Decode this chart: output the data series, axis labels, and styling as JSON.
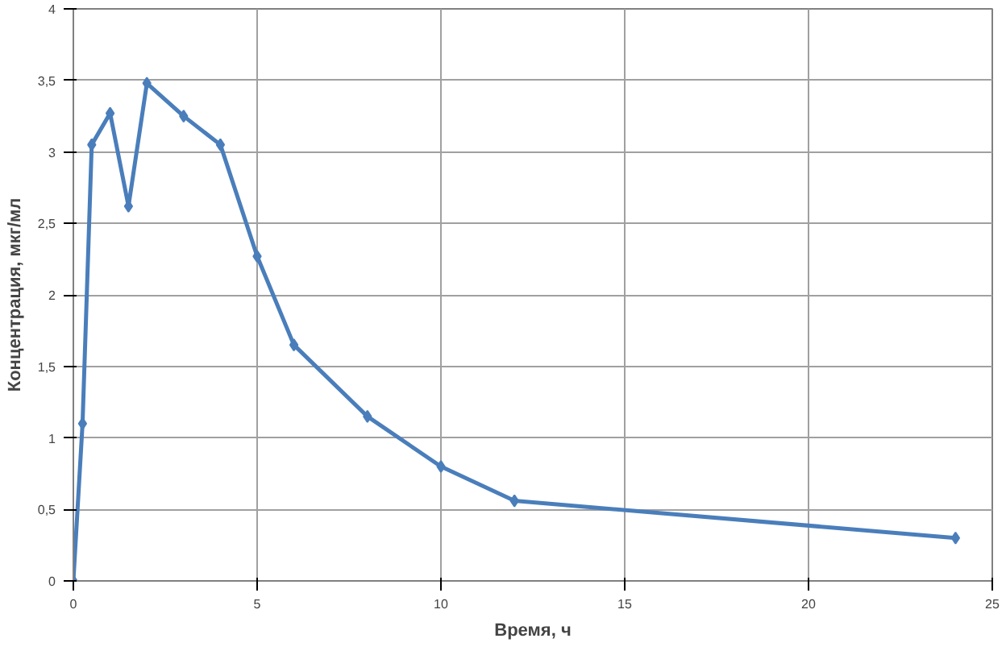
{
  "chart_data": {
    "type": "line",
    "xlabel": "Время, ч",
    "ylabel": "Концентрация, мкг/мл",
    "x": [
      0,
      0.25,
      0.5,
      1,
      1.5,
      2,
      3,
      4,
      5,
      6,
      8,
      10,
      12,
      24
    ],
    "series": [
      {
        "color": "#4a7ebb",
        "values": [
          0,
          1.1,
          3.05,
          3.27,
          2.62,
          3.48,
          3.25,
          3.05,
          2.27,
          1.65,
          1.15,
          0.8,
          0.56,
          0.3
        ]
      }
    ],
    "xlim": [
      0,
      25
    ],
    "xticks": [
      0,
      5,
      10,
      15,
      20,
      25
    ],
    "ylim": [
      0,
      4
    ],
    "yticks": [
      0,
      {
        "value": 0.5,
        "label": "0,5"
      },
      1,
      {
        "value": 1.5,
        "label": "1,5"
      },
      2,
      {
        "value": 2.5,
        "label": "2,5"
      },
      3,
      {
        "value": 3.5,
        "label": "3,5"
      },
      4
    ],
    "grid": true,
    "marker": "diamond",
    "line_style": "solid"
  }
}
